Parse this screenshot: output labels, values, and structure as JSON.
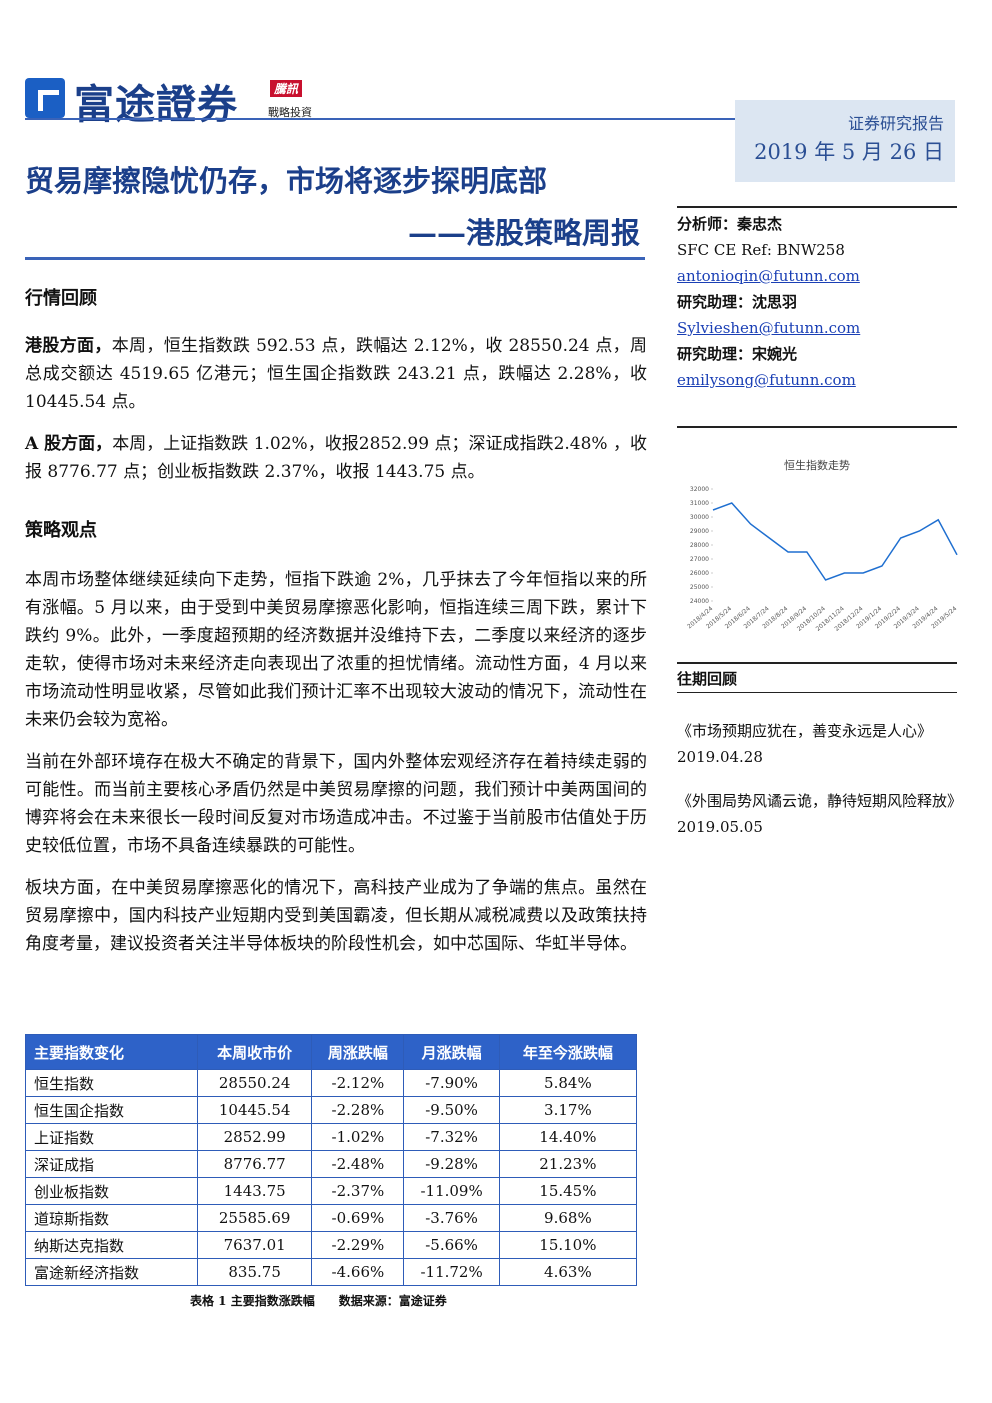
{
  "header": {
    "logo_text": "富途證券",
    "badge": "騰訊",
    "badge_sub": "戰略投資",
    "report_type": "证券研究报告",
    "date": "2019 年 5 月 26 日"
  },
  "title": {
    "main": "贸易摩擦隐忧仍存，市场将逐步探明底部",
    "sub": "——港股策略周报"
  },
  "market_review": {
    "heading": "行情回顾",
    "paragraphs": [
      {
        "lead": "港股方面，",
        "text": "本周，恒生指数跌 592.53 点，跌幅达 2.12%，收 28550.24 点，周总成交额达 4519.65 亿港元；恒生国企指数跌 243.21 点，跌幅达 2.28%，收 10445.54 点。"
      },
      {
        "lead": "A 股方面，",
        "text": "本周，上证指数跌 1.02%，收报2852.99 点；深证成指跌2.48% ，收报 8776.77 点；创业板指数跌 2.37%，收报 1443.75 点。"
      }
    ]
  },
  "strategy": {
    "heading": "策略观点",
    "paragraphs": [
      "本周市场整体继续延续向下走势，恒指下跌逾 2%，几乎抹去了今年恒指以来的所有涨幅。5 月以来，由于受到中美贸易摩擦恶化影响，恒指连续三周下跌，累计下跌约 9%。此外，一季度超预期的经济数据并没维持下去，二季度以来经济的逐步走软，使得市场对未来经济走向表现出了浓重的担忧情绪。流动性方面，4 月以来市场流动性明显收紧，尽管如此我们预计汇率不出现较大波动的情况下，流动性在未来仍会较为宽裕。",
      "当前在外部环境存在极大不确定的背景下，国内外整体宏观经济存在着持续走弱的可能性。而当前主要核心矛盾仍然是中美贸易摩擦的问题，我们预计中美两国间的博弈将会在未来很长一段时间反复对市场造成冲击。不过鉴于当前股市估值处于历史较低位置，市场不具备连续暴跌的可能性。",
      "板块方面，在中美贸易摩擦恶化的情况下，高科技产业成为了争端的焦点。虽然在贸易摩擦中，国内科技产业短期内受到美国霸凌，但长期从减税减费以及政策扶持角度考量，建议投资者关注半导体板块的阶段性机会，如中芯国际、华虹半导体。"
    ]
  },
  "table": {
    "headers": [
      "主要指数变化",
      "本周收市价",
      "周涨跌幅",
      "月涨跌幅",
      "年至今涨跌幅"
    ],
    "rows": [
      [
        "恒生指数",
        "28550.24",
        "-2.12%",
        "-7.90%",
        "5.84%"
      ],
      [
        "恒生国企指数",
        "10445.54",
        "-2.28%",
        "-9.50%",
        "3.17%"
      ],
      [
        "上证指数",
        "2852.99",
        "-1.02%",
        "-7.32%",
        "14.40%"
      ],
      [
        "深证成指",
        "8776.77",
        "-2.48%",
        "-9.28%",
        "21.23%"
      ],
      [
        "创业板指数",
        "1443.75",
        "-2.37%",
        "-11.09%",
        "15.45%"
      ],
      [
        "道琼斯指数",
        "25585.69",
        "-0.69%",
        "-3.76%",
        "9.68%"
      ],
      [
        "纳斯达克指数",
        "7637.01",
        "-2.29%",
        "-5.66%",
        "15.10%"
      ],
      [
        "富途新经济指数",
        "835.75",
        "-4.66%",
        "-11.72%",
        "4.63%"
      ]
    ],
    "caption": "表格 1 主要指数涨跌幅",
    "source": "数据来源：富途证券"
  },
  "sidebar": {
    "analyst": {
      "label": "分析师：",
      "name": "秦忠杰",
      "ref": "SFC CE Ref: BNW258",
      "email": "antonioqin@futunn.com"
    },
    "assistants": [
      {
        "label": "研究助理：",
        "name": "沈思羽",
        "email": "Sylvieshen@futunn.com"
      },
      {
        "label": "研究助理：",
        "name": "宋婉光",
        "email": "emilysong@futunn.com"
      }
    ]
  },
  "chart_data": {
    "type": "line",
    "title": "恒生指数走势",
    "categories": [
      "2018/4/24",
      "2018/5/24",
      "2018/6/24",
      "2018/7/24",
      "2018/8/24",
      "2018/9/24",
      "2018/10/24",
      "2018/11/24",
      "2018/12/24",
      "2019/1/24",
      "2019/2/24",
      "2019/3/24",
      "2019/4/24",
      "2019/5/24"
    ],
    "values": [
      30500,
      31000,
      29500,
      28500,
      27500,
      27500,
      25500,
      26000,
      26000,
      26500,
      28500,
      29000,
      29800,
      27300
    ],
    "color": "#1f6fd0",
    "ylim": [
      24000,
      32000
    ],
    "yticks": [
      24000,
      25000,
      26000,
      27000,
      28000,
      29000,
      30000,
      31000,
      32000
    ]
  },
  "past_reviews": {
    "heading": "往期回顾",
    "items": [
      "《市场预期应犹在，善变永远是人心》2019.04.28",
      "《外围局势风谲云诡，静待短期风险释放》2019.05.05"
    ]
  }
}
